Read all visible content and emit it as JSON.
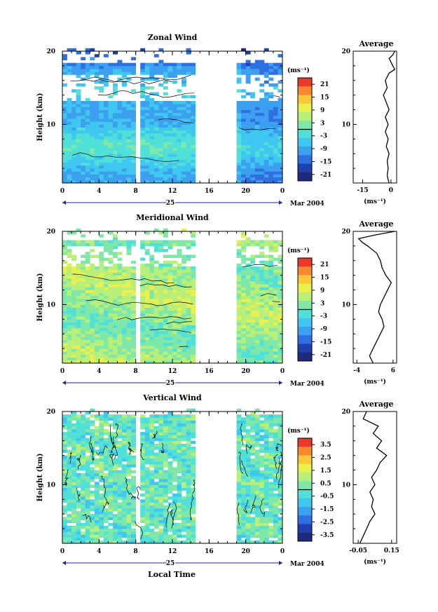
{
  "figure": {
    "x_axis_label": "Local Time",
    "date_label": "Mar 2004",
    "day_label": "25"
  },
  "chart_data": [
    {
      "type": "heatmap",
      "title": "Zonal Wind",
      "ylabel": "Height (km)",
      "x_ticks": [
        "0",
        "4",
        "8",
        "12",
        "16",
        "20",
        "0"
      ],
      "y_ticks": [
        "20",
        "10"
      ],
      "xlim": [
        0,
        24
      ],
      "ylim": [
        2,
        20
      ],
      "data_gaps": [
        [
          14.5,
          19.0
        ]
      ],
      "colorbar": {
        "unit_label": "(ms⁻¹)",
        "ticks": [
          "21",
          "15",
          "9",
          "3",
          "-3",
          "-9",
          "-15",
          "-21"
        ],
        "range": [
          -24,
          24
        ],
        "zero_line": 0
      },
      "average_profile": {
        "title": "Average",
        "x_ticks": [
          "-15",
          "0"
        ],
        "xlim": [
          -20,
          3
        ],
        "unit_label": "(ms⁻¹)",
        "y_ticks": [
          "20",
          "10"
        ],
        "height_km": [
          2,
          3,
          4,
          5,
          6,
          7,
          8,
          9,
          10,
          11,
          12,
          13,
          14,
          15,
          16,
          17,
          17.5,
          18,
          18.5,
          19,
          19.5,
          20
        ],
        "values": [
          -1,
          -2,
          -1.5,
          -2,
          -1,
          -2.5,
          -1.5,
          -3,
          -1.5,
          -3,
          -1,
          -2.5,
          -4,
          -2,
          -3,
          -1,
          2,
          1,
          0,
          -1,
          1,
          2
        ]
      }
    },
    {
      "type": "heatmap",
      "title": "Meridional Wind",
      "ylabel": "Height (km)",
      "x_ticks": [
        "0",
        "4",
        "8",
        "12",
        "16",
        "20",
        "0"
      ],
      "y_ticks": [
        "20",
        "10"
      ],
      "xlim": [
        0,
        24
      ],
      "ylim": [
        2,
        20
      ],
      "data_gaps": [
        [
          14.5,
          19.0
        ]
      ],
      "colorbar": {
        "unit_label": "(ms⁻¹)",
        "ticks": [
          "21",
          "15",
          "9",
          "3",
          "-3",
          "-9",
          "-15",
          "-21"
        ],
        "range": [
          -24,
          24
        ],
        "zero_line": 0
      },
      "average_profile": {
        "title": "Average",
        "x_ticks": [
          "-4",
          "6"
        ],
        "xlim": [
          -5,
          7
        ],
        "unit_label": "(ms⁻¹)",
        "y_ticks": [
          "20",
          "10"
        ],
        "height_km": [
          2,
          3,
          4,
          5,
          6,
          7,
          8,
          9,
          10,
          11,
          12,
          13,
          14,
          15,
          16,
          17,
          18,
          18.5,
          19,
          19.5,
          20
        ],
        "values": [
          0.5,
          -0.5,
          0.5,
          1.5,
          2.5,
          3.5,
          3.0,
          2.0,
          2.5,
          3.5,
          4.5,
          5.5,
          4.0,
          3.0,
          2.5,
          1.5,
          -1.0,
          -2.5,
          -3.5,
          1.0,
          6.5
        ]
      }
    },
    {
      "type": "heatmap",
      "title": "Vertical Wind",
      "ylabel": "Height (km)",
      "x_ticks": [
        "0",
        "4",
        "8",
        "12",
        "16",
        "20",
        "0"
      ],
      "y_ticks": [
        "20",
        "10"
      ],
      "xlim": [
        0,
        24
      ],
      "ylim": [
        2,
        20
      ],
      "data_gaps": [
        [
          14.5,
          19.0
        ]
      ],
      "colorbar": {
        "unit_label": "(ms⁻¹)",
        "ticks": [
          "3.5",
          "2.5",
          "1.5",
          "0.5",
          "-0.5",
          "-1.5",
          "-2.5",
          "-3.5"
        ],
        "range": [
          -4,
          4
        ],
        "zero_line": 0
      },
      "average_profile": {
        "title": "Average",
        "x_ticks": [
          "-0.05",
          "0.15"
        ],
        "xlim": [
          -0.08,
          0.18
        ],
        "unit_label": "(ms⁻¹)",
        "y_ticks": [
          "20",
          "10"
        ],
        "height_km": [
          2,
          3,
          4,
          5,
          6,
          7,
          8,
          9,
          10,
          11,
          12,
          13,
          14,
          15,
          16,
          17,
          18,
          19,
          20
        ],
        "values": [
          -0.04,
          -0.02,
          0.0,
          0.02,
          0.05,
          0.03,
          0.04,
          0.02,
          0.05,
          0.03,
          0.06,
          0.08,
          0.12,
          0.06,
          0.09,
          0.04,
          0.07,
          -0.02,
          0.0
        ]
      }
    }
  ]
}
